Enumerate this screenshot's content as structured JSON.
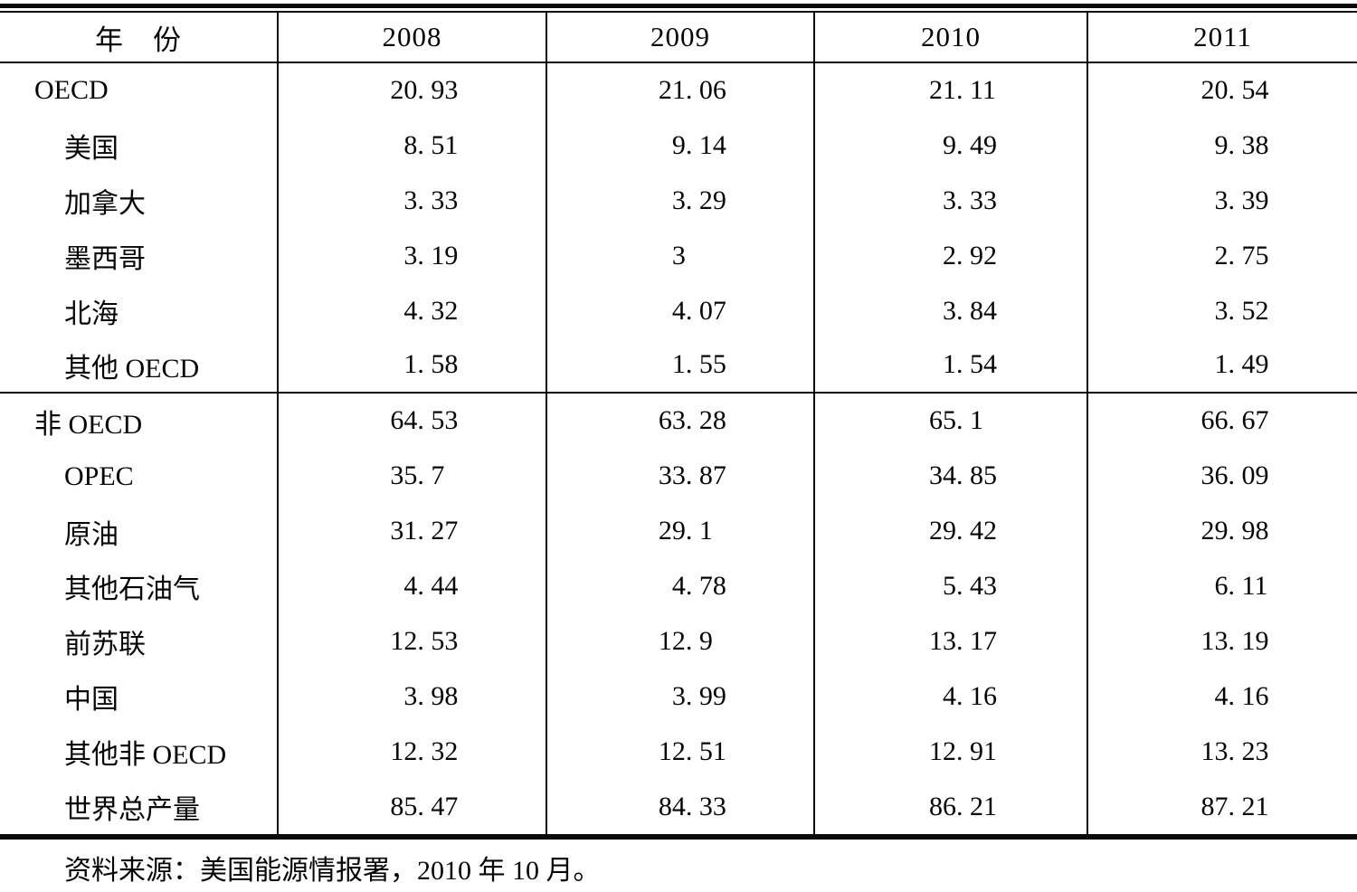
{
  "table": {
    "header": {
      "row_label": "年　份",
      "years": [
        "2008",
        "2009",
        "2010",
        "2011"
      ]
    },
    "rows": [
      {
        "label": "OECD",
        "level": 0,
        "values": [
          "20. 93",
          "21. 06",
          "21. 11",
          "20. 54"
        ]
      },
      {
        "label": "美国",
        "level": 1,
        "values": [
          "8. 51",
          "9. 14",
          "9. 49",
          "9. 38"
        ]
      },
      {
        "label": "加拿大",
        "level": 1,
        "values": [
          "3. 33",
          "3. 29",
          "3. 33",
          "3. 39"
        ]
      },
      {
        "label": "墨西哥",
        "level": 1,
        "values": [
          "3. 19",
          "3",
          "2. 92",
          "2. 75"
        ]
      },
      {
        "label": "北海",
        "level": 1,
        "values": [
          "4. 32",
          "4. 07",
          "3. 84",
          "3. 52"
        ]
      },
      {
        "label": "其他 OECD",
        "level": 1,
        "values": [
          "1. 58",
          "1. 55",
          "1. 54",
          "1. 49"
        ],
        "section_end": true
      },
      {
        "label": "非 OECD",
        "level": 0,
        "values": [
          "64. 53",
          "63. 28",
          "65. 1",
          "66. 67"
        ]
      },
      {
        "label": "OPEC",
        "level": 1,
        "values": [
          "35. 7",
          "33. 87",
          "34. 85",
          "36. 09"
        ]
      },
      {
        "label": "原油",
        "level": 1,
        "values": [
          "31. 27",
          "29. 1",
          "29. 42",
          "29. 98"
        ]
      },
      {
        "label": "其他石油气",
        "level": 1,
        "values": [
          "4. 44",
          "4. 78",
          "5. 43",
          "6. 11"
        ]
      },
      {
        "label": "前苏联",
        "level": 1,
        "values": [
          "12. 53",
          "12. 9",
          "13. 17",
          "13. 19"
        ]
      },
      {
        "label": "中国",
        "level": 1,
        "values": [
          "3. 98",
          "3. 99",
          "4. 16",
          "4. 16"
        ]
      },
      {
        "label": "其他非 OECD",
        "level": 1,
        "values": [
          "12. 32",
          "12. 51",
          "12. 91",
          "13. 23"
        ]
      },
      {
        "label": "世界总产量",
        "level": 1,
        "values": [
          "85. 47",
          "84. 33",
          "86. 21",
          "87. 21"
        ]
      }
    ],
    "footnote": "资料来源：美国能源情报署，2010 年 10 月。"
  }
}
